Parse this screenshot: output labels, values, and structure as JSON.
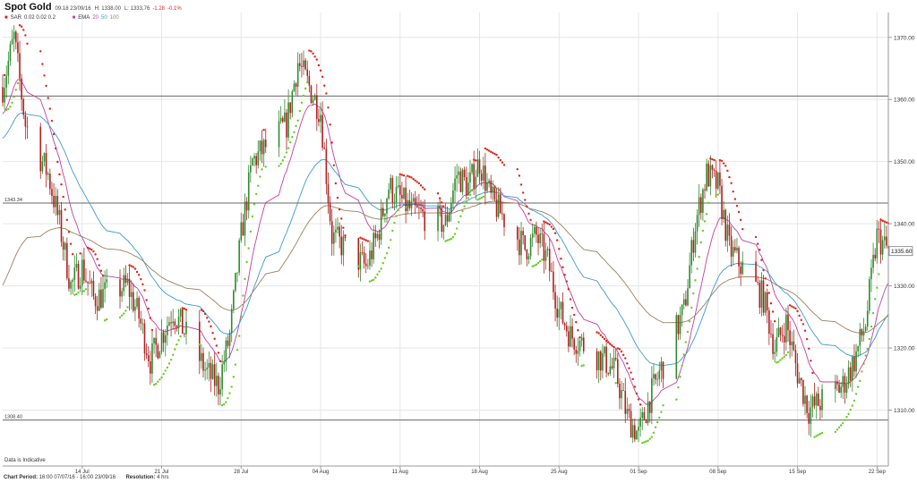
{
  "header": {
    "title": "Spot Gold",
    "timestamp": "09:18 23/09/16",
    "high": "H: 1338.00",
    "low": "L: 1333.76",
    "change": "-1.28",
    "change_pct": "-0.1%",
    "sar_label": "SAR",
    "sar_params": "0.02  0.02  0.2",
    "ema_label": "EMA",
    "ema_p1": "20",
    "ema_p2": "50",
    "ema_p3": "100"
  },
  "disclaimer": "Data is Indicative",
  "footer": {
    "period_label": "Chart Period:",
    "period_value": "16:00 07/07/16 - 16:00 23/09/16",
    "resolution_label": "Resolution:",
    "resolution_value": "4 hrs"
  },
  "colors": {
    "up": "#2e8b2e",
    "down": "#b02020",
    "sar_up": "#66cc22",
    "sar_down": "#dd2211",
    "ema20": "#c040a0",
    "ema50": "#3a9ad0",
    "ema100": "#9a8060",
    "hline": "#666666",
    "grid": "#e6e6e6"
  },
  "chart_data": {
    "type": "candlestick",
    "ylim": [
      1301,
      1374
    ],
    "y_ticks": [
      1310,
      1320,
      1330,
      1340,
      1350,
      1360,
      1370
    ],
    "y_tick_labels": [
      "1310.00",
      "1320.00",
      "1330.00",
      "1340.00",
      "1350.00",
      "1360.00",
      "1370.00"
    ],
    "x_ticks": [
      {
        "label": "14 Jul",
        "date": "2016-07-14"
      },
      {
        "label": "21 Jul",
        "date": "2016-07-21"
      },
      {
        "label": "28 Jul",
        "date": "2016-07-28"
      },
      {
        "label": "04 Aug",
        "date": "2016-08-04"
      },
      {
        "label": "11 Aug",
        "date": "2016-08-11"
      },
      {
        "label": "18 Aug",
        "date": "2016-08-18"
      },
      {
        "label": "25 Aug",
        "date": "2016-08-25"
      },
      {
        "label": "01 Sep",
        "date": "2016-09-01"
      },
      {
        "label": "08 Sep",
        "date": "2016-09-08"
      },
      {
        "label": "15 Sep",
        "date": "2016-09-15"
      },
      {
        "label": "22 Sep",
        "date": "2016-09-22"
      }
    ],
    "x_range": [
      "2016-07-07 16:00",
      "2016-09-23 16:00"
    ],
    "current_price": "1335.60",
    "horizontal_lines": [
      {
        "value": 1360.55,
        "label": ""
      },
      {
        "value": 1343.34,
        "label": "1343.34"
      },
      {
        "value": 1308.4,
        "label": "1308.40"
      }
    ],
    "grid": true,
    "ema_periods": [
      20,
      50,
      100
    ],
    "sar_params": [
      0.02,
      0.02,
      0.2
    ],
    "candle_anchors": [
      {
        "date": "2016-07-07",
        "price": 1362
      },
      {
        "date": "2016-07-08",
        "price": 1370
      },
      {
        "date": "2016-07-09",
        "price": 1356
      },
      {
        "date": "2016-07-11",
        "price": 1348
      },
      {
        "date": "2016-07-12",
        "price": 1340
      },
      {
        "date": "2016-07-13",
        "price": 1330
      },
      {
        "date": "2016-07-14",
        "price": 1333
      },
      {
        "date": "2016-07-15",
        "price": 1328
      },
      {
        "date": "2016-07-18",
        "price": 1330
      },
      {
        "date": "2016-07-19",
        "price": 1325
      },
      {
        "date": "2016-07-20",
        "price": 1318
      },
      {
        "date": "2016-07-21",
        "price": 1322
      },
      {
        "date": "2016-07-22",
        "price": 1326
      },
      {
        "date": "2016-07-25",
        "price": 1316
      },
      {
        "date": "2016-07-26",
        "price": 1314
      },
      {
        "date": "2016-07-27",
        "price": 1322
      },
      {
        "date": "2016-07-28",
        "price": 1338
      },
      {
        "date": "2016-07-29",
        "price": 1350
      },
      {
        "date": "2016-07-30",
        "price": 1352
      },
      {
        "date": "2016-08-01",
        "price": 1356
      },
      {
        "date": "2016-08-02",
        "price": 1366
      },
      {
        "date": "2016-08-03",
        "price": 1362
      },
      {
        "date": "2016-08-04",
        "price": 1358
      },
      {
        "date": "2016-08-05",
        "price": 1338
      },
      {
        "date": "2016-08-08",
        "price": 1333
      },
      {
        "date": "2016-08-09",
        "price": 1338
      },
      {
        "date": "2016-08-10",
        "price": 1346
      },
      {
        "date": "2016-08-11",
        "price": 1344
      },
      {
        "date": "2016-08-12",
        "price": 1342
      },
      {
        "date": "2016-08-15",
        "price": 1340
      },
      {
        "date": "2016-08-16",
        "price": 1348
      },
      {
        "date": "2016-08-17",
        "price": 1346
      },
      {
        "date": "2016-08-18",
        "price": 1350
      },
      {
        "date": "2016-08-19",
        "price": 1344
      },
      {
        "date": "2016-08-22",
        "price": 1336
      },
      {
        "date": "2016-08-23",
        "price": 1338
      },
      {
        "date": "2016-08-24",
        "price": 1334
      },
      {
        "date": "2016-08-25",
        "price": 1326
      },
      {
        "date": "2016-08-26",
        "price": 1322
      },
      {
        "date": "2016-08-29",
        "price": 1318
      },
      {
        "date": "2016-08-30",
        "price": 1316
      },
      {
        "date": "2016-08-31",
        "price": 1309
      },
      {
        "date": "2016-09-01",
        "price": 1306
      },
      {
        "date": "2016-09-02",
        "price": 1312
      },
      {
        "date": "2016-09-05",
        "price": 1326
      },
      {
        "date": "2016-09-06",
        "price": 1340
      },
      {
        "date": "2016-09-07",
        "price": 1348
      },
      {
        "date": "2016-09-08",
        "price": 1346
      },
      {
        "date": "2016-09-09",
        "price": 1336
      },
      {
        "date": "2016-09-12",
        "price": 1328
      },
      {
        "date": "2016-09-13",
        "price": 1320
      },
      {
        "date": "2016-09-14",
        "price": 1324
      },
      {
        "date": "2016-09-15",
        "price": 1316
      },
      {
        "date": "2016-09-16",
        "price": 1310
      },
      {
        "date": "2016-09-19",
        "price": 1314
      },
      {
        "date": "2016-09-20",
        "price": 1318
      },
      {
        "date": "2016-09-21",
        "price": 1324
      },
      {
        "date": "2016-09-22",
        "price": 1338
      },
      {
        "date": "2016-09-23",
        "price": 1335.6
      }
    ]
  }
}
